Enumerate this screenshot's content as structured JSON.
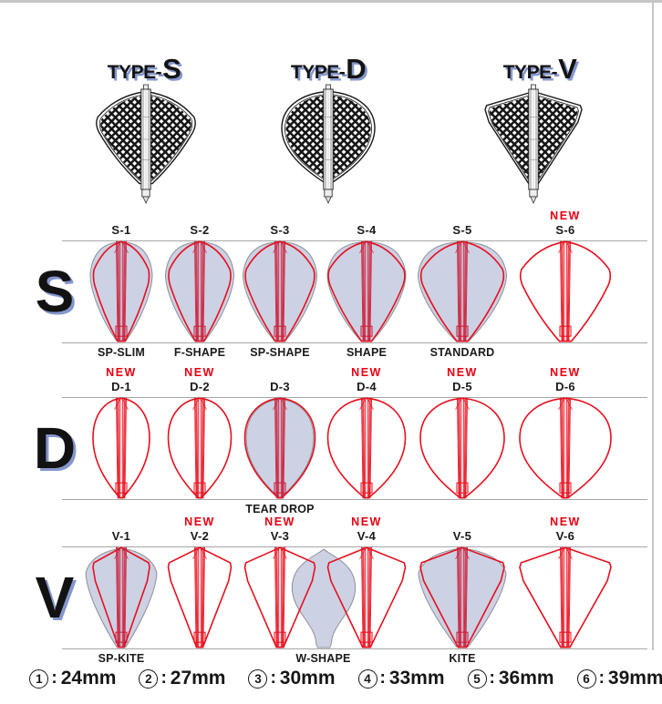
{
  "header": {
    "types": [
      {
        "prefix": "TYPE-",
        "letter": "S",
        "shape": "shield"
      },
      {
        "prefix": "TYPE-",
        "letter": "D",
        "shape": "teardrop"
      },
      {
        "prefix": "TYPE-",
        "letter": "V",
        "shape": "kite"
      }
    ]
  },
  "labels": {
    "new": "NEW"
  },
  "rows": [
    {
      "letter": "S",
      "shape": "shield",
      "cells": [
        {
          "code": "S-1",
          "name": "SP-SLIM",
          "new": false,
          "silhouette": true
        },
        {
          "code": "S-2",
          "name": "F-SHAPE",
          "new": false,
          "silhouette": true
        },
        {
          "code": "S-3",
          "name": "SP-SHAPE",
          "new": false,
          "silhouette": true
        },
        {
          "code": "S-4",
          "name": "SHAPE",
          "new": false,
          "silhouette": true
        },
        {
          "code": "S-5",
          "name": "STANDARD",
          "new": false,
          "silhouette": true
        },
        {
          "code": "S-6",
          "name": "",
          "new": true,
          "silhouette": false
        }
      ]
    },
    {
      "letter": "D",
      "shape": "teardrop",
      "cells": [
        {
          "code": "D-1",
          "name": "",
          "new": true,
          "silhouette": false
        },
        {
          "code": "D-2",
          "name": "",
          "new": true,
          "silhouette": false
        },
        {
          "code": "D-3",
          "name": "TEAR DROP",
          "new": false,
          "silhouette": true
        },
        {
          "code": "D-4",
          "name": "",
          "new": true,
          "silhouette": false
        },
        {
          "code": "D-5",
          "name": "",
          "new": true,
          "silhouette": false
        },
        {
          "code": "D-6",
          "name": "",
          "new": true,
          "silhouette": false
        }
      ]
    },
    {
      "letter": "V",
      "shape": "kite",
      "cells": [
        {
          "code": "V-1",
          "name": "SP-KITE",
          "new": false,
          "silhouette": true
        },
        {
          "code": "V-2",
          "name": "",
          "new": true,
          "silhouette": false
        },
        {
          "code": "V-3",
          "name": "",
          "new": true,
          "silhouette": false
        },
        {
          "code": "V-4",
          "name": "",
          "new": true,
          "silhouette": false
        },
        {
          "code": "V-5",
          "name": "KITE",
          "new": false,
          "silhouette": true
        },
        {
          "code": "V-6",
          "name": "",
          "new": true,
          "silhouette": false
        }
      ],
      "floating_silhouette": {
        "name": "W-SHAPE",
        "between": [
          "V-3",
          "V-4"
        ]
      }
    }
  ],
  "legend": {
    "separator": ":",
    "items": [
      {
        "num": "1",
        "size": "24mm"
      },
      {
        "num": "2",
        "size": "27mm"
      },
      {
        "num": "3",
        "size": "30mm"
      },
      {
        "num": "4",
        "size": "33mm"
      },
      {
        "num": "5",
        "size": "36mm"
      },
      {
        "num": "6",
        "size": "39mm"
      }
    ]
  },
  "colors": {
    "red": "#e6101e",
    "new_red": "#e60012",
    "fill": "#ccd1e4",
    "silhouette_stroke": "#8e9097",
    "rule": "#a6a6a6",
    "text": "#1a1a1a",
    "shadow_blue": "#8496cd"
  }
}
